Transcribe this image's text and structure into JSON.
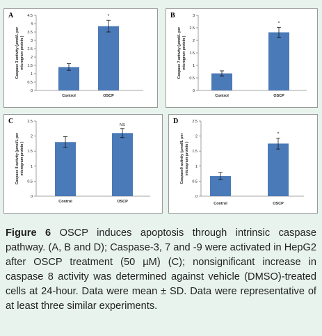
{
  "chart_data": [
    {
      "type": "bar",
      "panel_label": "A",
      "ylabel": "Caspase 3 activity (µmol/L per microgram protein )",
      "ylim": [
        0,
        4.5
      ],
      "yticks": [
        "0",
        "0.5",
        "1",
        "1.5",
        "2",
        "2.5",
        "3",
        "3.5",
        "4",
        "4.5"
      ],
      "categories": [
        "Control",
        "OSCP"
      ],
      "values": [
        1.4,
        3.85
      ],
      "errors": [
        0.2,
        0.35
      ],
      "annotations": [
        "",
        "*"
      ],
      "bar_color": "#4a7ab8"
    },
    {
      "type": "bar",
      "panel_label": "B",
      "ylabel": "Caspase 7 activity (µmol/L per microgram protein )",
      "ylim": [
        0,
        3
      ],
      "yticks": [
        "0",
        "0.5",
        "1",
        "1.5",
        "2",
        "2.5",
        "3"
      ],
      "categories": [
        "Control",
        "OSCP"
      ],
      "values": [
        0.68,
        2.32
      ],
      "errors": [
        0.1,
        0.2
      ],
      "annotations": [
        "",
        "*"
      ],
      "bar_color": "#4a7ab8"
    },
    {
      "type": "bar",
      "panel_label": "C",
      "ylabel": "Caspase 8 activity (µmol/L per microgram protein )",
      "ylim": [
        0,
        2.5
      ],
      "yticks": [
        "0",
        "0.5",
        "1",
        "1.5",
        "2",
        "2.5"
      ],
      "categories": [
        "Control",
        "OSCP"
      ],
      "values": [
        1.8,
        2.1
      ],
      "errors": [
        0.18,
        0.15
      ],
      "annotations": [
        "",
        "NS"
      ],
      "bar_color": "#4a7ab8"
    },
    {
      "type": "bar",
      "panel_label": "D",
      "ylabel": "Caspase9 activity (µmol/L per microgram protein )",
      "ylim": [
        0,
        2.5
      ],
      "yticks": [
        "0",
        "0.5",
        "1",
        "1.5",
        "2",
        "2.5"
      ],
      "categories": [
        "Control",
        "OSCP"
      ],
      "values": [
        0.67,
        1.75
      ],
      "errors": [
        0.12,
        0.18
      ],
      "annotations": [
        "",
        "*"
      ],
      "bar_color": "#4a7ab8"
    }
  ],
  "caption": {
    "figure_label": "Figure 6",
    "text": " OSCP induces apoptosis through intrinsic caspase pathway. (A, B and D); Caspase-3, 7 and -9 were activated in HepG2 after OSCP treatment (50 µM) (C); nonsignificant increase in caspase 8 activity was determined against vehicle (DMSO)-treated cells at 24-hour. Data were mean ± SD. Data were representative of at least three similar experiments."
  }
}
